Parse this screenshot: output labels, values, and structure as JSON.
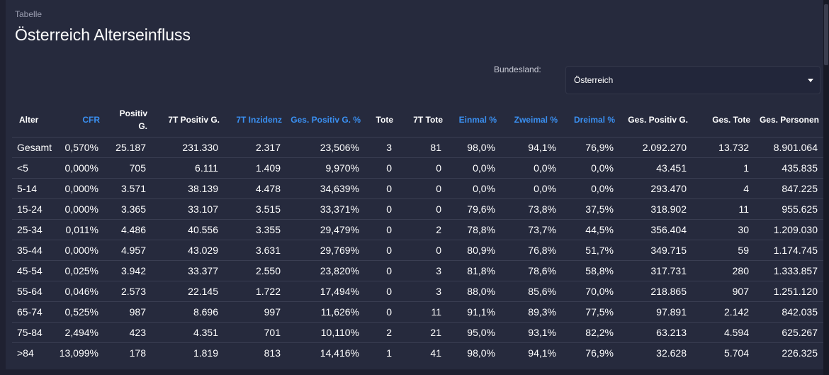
{
  "header": {
    "label": "Tabelle",
    "title": "Österreich Alterseinfluss"
  },
  "filter": {
    "label": "Bundesland:",
    "selected": "Österreich"
  },
  "table": {
    "columns": [
      {
        "id": "alter",
        "label": "Alter",
        "link": false
      },
      {
        "id": "cfr",
        "label": "CFR",
        "link": true
      },
      {
        "id": "positiv",
        "label": "Positiv G.",
        "link": false
      },
      {
        "id": "positiv7t",
        "label": "7T Positiv G.",
        "link": false
      },
      {
        "id": "inzidenz",
        "label": "7T Inzidenz",
        "link": true
      },
      {
        "id": "gespositivpct",
        "label": "Ges. Positiv G. %",
        "link": true
      },
      {
        "id": "tote",
        "label": "Tote",
        "link": false
      },
      {
        "id": "tote7t",
        "label": "7T Tote",
        "link": false
      },
      {
        "id": "einmal",
        "label": "Einmal %",
        "link": true
      },
      {
        "id": "zweimal",
        "label": "Zweimal %",
        "link": true
      },
      {
        "id": "dreimal",
        "label": "Dreimal %",
        "link": true
      },
      {
        "id": "gespositiv",
        "label": "Ges. Positiv G.",
        "link": false
      },
      {
        "id": "gestote",
        "label": "Ges. Tote",
        "link": false
      },
      {
        "id": "gespersonen",
        "label": "Ges. Personen",
        "link": false
      }
    ],
    "rows": [
      [
        "Gesamt",
        "0,570%",
        "25.187",
        "231.330",
        "2.317",
        "23,506%",
        "3",
        "81",
        "98,0%",
        "94,1%",
        "76,9%",
        "2.092.270",
        "13.732",
        "8.901.064"
      ],
      [
        "<5",
        "0,000%",
        "705",
        "6.111",
        "1.409",
        "9,970%",
        "0",
        "0",
        "0,0%",
        "0,0%",
        "0,0%",
        "43.451",
        "1",
        "435.835"
      ],
      [
        "5-14",
        "0,000%",
        "3.571",
        "38.139",
        "4.478",
        "34,639%",
        "0",
        "0",
        "0,0%",
        "0,0%",
        "0,0%",
        "293.470",
        "4",
        "847.225"
      ],
      [
        "15-24",
        "0,000%",
        "3.365",
        "33.107",
        "3.515",
        "33,371%",
        "0",
        "0",
        "79,6%",
        "73,8%",
        "37,5%",
        "318.902",
        "11",
        "955.625"
      ],
      [
        "25-34",
        "0,011%",
        "4.486",
        "40.556",
        "3.355",
        "29,479%",
        "0",
        "2",
        "78,8%",
        "73,7%",
        "44,5%",
        "356.404",
        "30",
        "1.209.030"
      ],
      [
        "35-44",
        "0,000%",
        "4.957",
        "43.029",
        "3.631",
        "29,769%",
        "0",
        "0",
        "80,9%",
        "76,8%",
        "51,7%",
        "349.715",
        "59",
        "1.174.745"
      ],
      [
        "45-54",
        "0,025%",
        "3.942",
        "33.377",
        "2.550",
        "23,820%",
        "0",
        "3",
        "81,8%",
        "78,6%",
        "58,8%",
        "317.731",
        "280",
        "1.333.857"
      ],
      [
        "55-64",
        "0,046%",
        "2.573",
        "22.145",
        "1.722",
        "17,494%",
        "0",
        "3",
        "88,0%",
        "85,6%",
        "70,0%",
        "218.865",
        "907",
        "1.251.120"
      ],
      [
        "65-74",
        "0,525%",
        "987",
        "8.696",
        "997",
        "11,626%",
        "0",
        "11",
        "91,1%",
        "89,3%",
        "77,5%",
        "97.891",
        "2.142",
        "842.035"
      ],
      [
        "75-84",
        "2,494%",
        "423",
        "4.351",
        "701",
        "10,110%",
        "2",
        "21",
        "95,0%",
        "93,1%",
        "82,2%",
        "63.213",
        "4.594",
        "625.267"
      ],
      [
        ">84",
        "13,099%",
        "178",
        "1.819",
        "813",
        "14,416%",
        "1",
        "41",
        "98,0%",
        "94,1%",
        "76,9%",
        "32.628",
        "5.704",
        "226.325"
      ]
    ]
  },
  "colors": {
    "background": "#262a3d",
    "outer": "#1f2131",
    "link": "#3a8ff0",
    "divider": "#3a3e52"
  }
}
